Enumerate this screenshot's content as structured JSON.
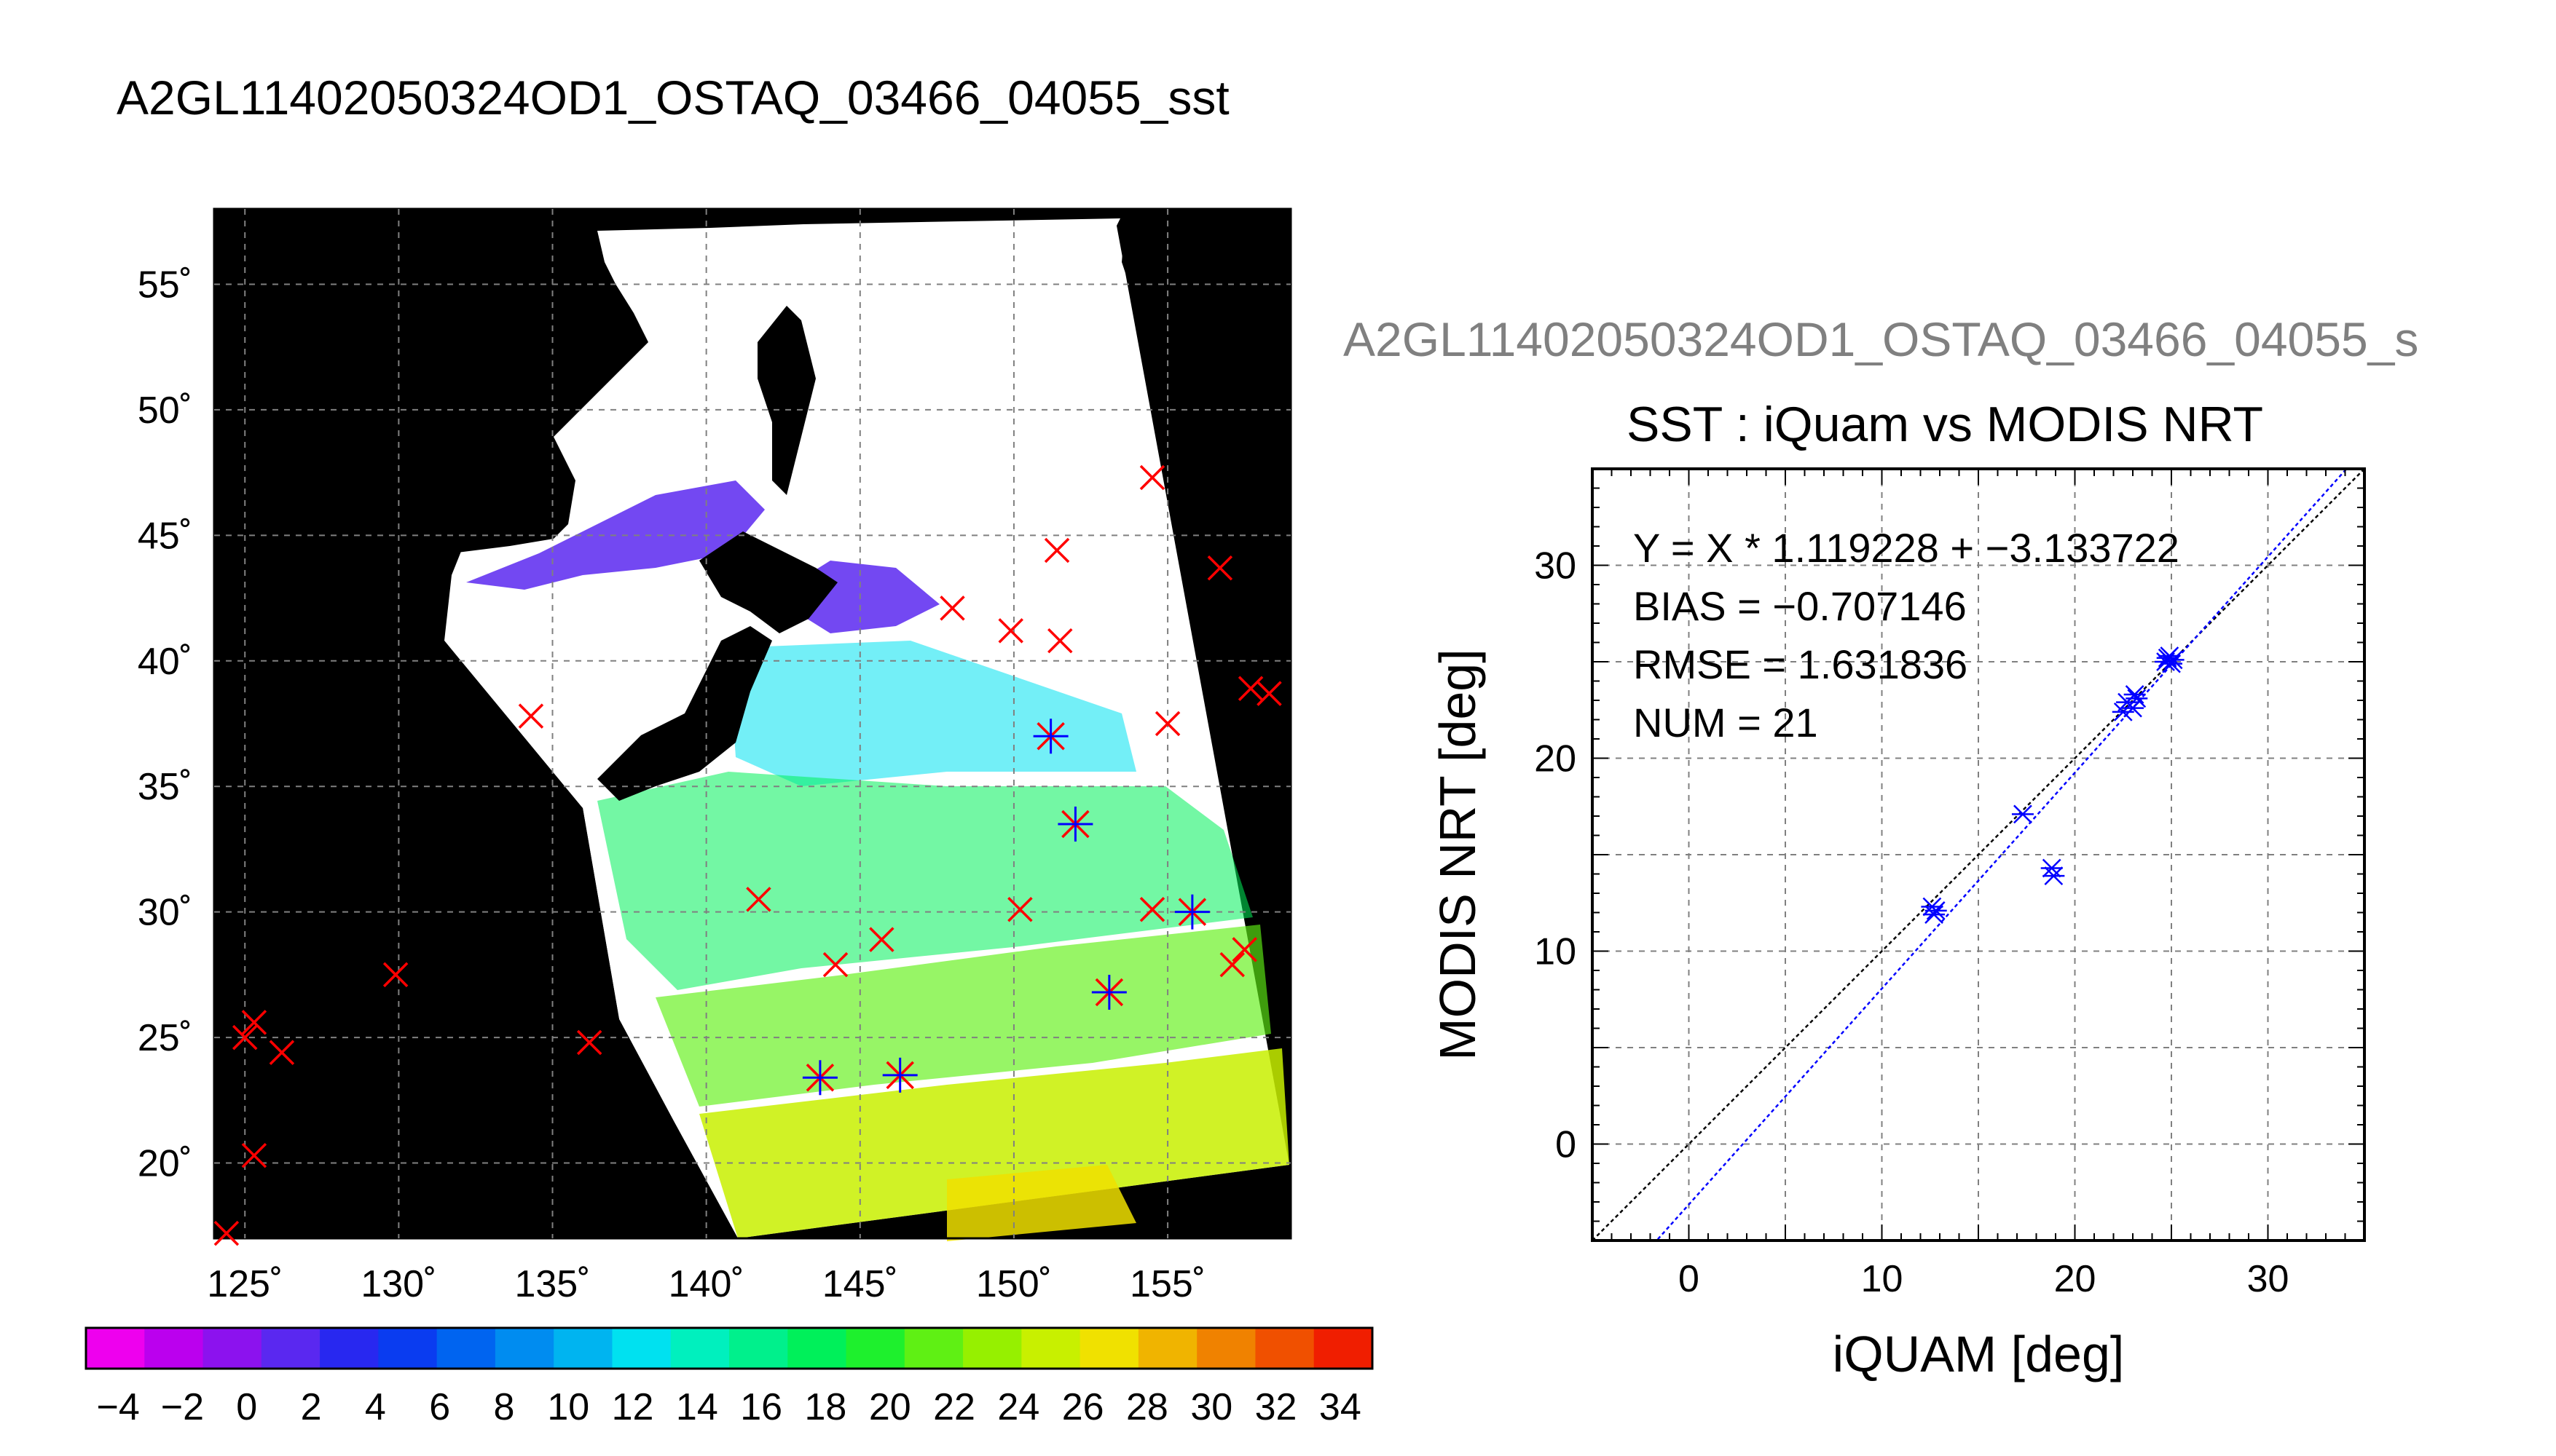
{
  "main_title": "A2GL11402050324OD1_OSTAQ_03466_04055_sst",
  "overlay_title": "A2GL11402050324OD1_OSTAQ_03466_04055_s",
  "colors": {
    "land": "#000000",
    "cloud": "#ffffff",
    "grid": "#808080",
    "marker_red": "#ff0000",
    "marker_blue": "#0000ff",
    "fit_line": "#0000ff",
    "identity_line": "#000000"
  },
  "chart_data": [
    {
      "type": "map",
      "title": "",
      "x_ticks": [
        "125˚",
        "130˚",
        "135˚",
        "140˚",
        "145˚",
        "150˚",
        "155˚"
      ],
      "x_tick_values": [
        125,
        130,
        135,
        140,
        145,
        150,
        155
      ],
      "y_ticks": [
        "55˚",
        "50˚",
        "45˚",
        "40˚",
        "35˚",
        "30˚",
        "25˚",
        "20˚"
      ],
      "y_tick_values": [
        55,
        50,
        45,
        40,
        35,
        30,
        25,
        20
      ],
      "xlim": [
        124,
        159
      ],
      "ylim": [
        17,
        58
      ],
      "grid": true,
      "iquam_points": [
        {
          "lon": 125.0,
          "lat": 25.0
        },
        {
          "lon": 125.3,
          "lat": 25.6
        },
        {
          "lon": 126.2,
          "lat": 24.4
        },
        {
          "lon": 125.3,
          "lat": 20.3
        },
        {
          "lon": 124.4,
          "lat": 17.2
        },
        {
          "lon": 129.9,
          "lat": 27.5
        },
        {
          "lon": 136.2,
          "lat": 24.8
        },
        {
          "lon": 134.3,
          "lat": 37.8
        },
        {
          "lon": 141.7,
          "lat": 30.5
        },
        {
          "lon": 144.2,
          "lat": 27.9
        },
        {
          "lon": 145.7,
          "lat": 28.9
        },
        {
          "lon": 148.0,
          "lat": 42.1
        },
        {
          "lon": 149.9,
          "lat": 41.2
        },
        {
          "lon": 150.2,
          "lat": 30.1
        },
        {
          "lon": 151.4,
          "lat": 44.4
        },
        {
          "lon": 151.5,
          "lat": 40.8
        },
        {
          "lon": 154.5,
          "lat": 47.3
        },
        {
          "lon": 154.5,
          "lat": 30.1
        },
        {
          "lon": 155.0,
          "lat": 37.5
        },
        {
          "lon": 156.7,
          "lat": 43.7
        },
        {
          "lon": 157.1,
          "lat": 27.9
        },
        {
          "lon": 157.5,
          "lat": 28.5
        },
        {
          "lon": 157.7,
          "lat": 38.9
        },
        {
          "lon": 158.3,
          "lat": 38.7
        }
      ],
      "matched_points": [
        {
          "lon": 143.7,
          "lat": 23.4
        },
        {
          "lon": 146.3,
          "lat": 23.5
        },
        {
          "lon": 151.2,
          "lat": 37.0
        },
        {
          "lon": 152.0,
          "lat": 33.5
        },
        {
          "lon": 153.1,
          "lat": 26.8
        },
        {
          "lon": 155.8,
          "lat": 30.0
        }
      ]
    },
    {
      "type": "colorbar",
      "range": [
        -5,
        35
      ],
      "tick_labels": [
        "−4",
        "−2",
        "0",
        "2",
        "4",
        "6",
        "8",
        "10",
        "12",
        "14",
        "16",
        "18",
        "20",
        "22",
        "24",
        "26",
        "28",
        "30",
        "32",
        "34"
      ],
      "tick_values": [
        -4,
        -2,
        0,
        2,
        4,
        6,
        8,
        10,
        12,
        14,
        16,
        18,
        20,
        22,
        24,
        26,
        28,
        30,
        32,
        34
      ],
      "colors": [
        "#ee00ee",
        "#bb00ee",
        "#8c12ee",
        "#5a28f0",
        "#2828f0",
        "#0a3cf0",
        "#0064f0",
        "#008cf0",
        "#00b4f0",
        "#00e1f0",
        "#00f0be",
        "#00f08c",
        "#00f05a",
        "#1ef02d",
        "#5ff014",
        "#96f000",
        "#c8f000",
        "#f0e100",
        "#f0b400",
        "#f08200",
        "#f05000",
        "#f01e00"
      ]
    },
    {
      "type": "scatter",
      "title": "SST : iQuam vs MODIS NRT",
      "xlabel": "iQUAM [deg]",
      "ylabel": "MODIS NRT [deg]",
      "xlim": [
        -5,
        35
      ],
      "ylim": [
        -5,
        35
      ],
      "x_ticks": [
        "0",
        "10",
        "20",
        "30"
      ],
      "x_tick_values": [
        0,
        10,
        20,
        30
      ],
      "y_ticks": [
        "0",
        "10",
        "20",
        "30"
      ],
      "y_tick_values": [
        0,
        10,
        20,
        30
      ],
      "grid": true,
      "annotations": [
        "Y = X * 1.119228 + −3.133722",
        "BIAS = −0.707146",
        "RMSE = 1.631836",
        "NUM = 21"
      ],
      "fit": {
        "slope": 1.119228,
        "intercept": -3.133722
      },
      "points": [
        {
          "x": 12.6,
          "y": 12.3
        },
        {
          "x": 12.7,
          "y": 11.9
        },
        {
          "x": 12.8,
          "y": 12.1
        },
        {
          "x": 17.3,
          "y": 17.1
        },
        {
          "x": 18.8,
          "y": 14.3
        },
        {
          "x": 18.9,
          "y": 13.9
        },
        {
          "x": 22.5,
          "y": 22.4
        },
        {
          "x": 22.7,
          "y": 22.9
        },
        {
          "x": 23.1,
          "y": 23.3
        },
        {
          "x": 23.2,
          "y": 23.1
        },
        {
          "x": 23.0,
          "y": 22.6
        },
        {
          "x": 24.7,
          "y": 25.0
        },
        {
          "x": 24.9,
          "y": 25.3
        },
        {
          "x": 25.0,
          "y": 24.9
        },
        {
          "x": 24.8,
          "y": 25.2
        },
        {
          "x": 25.1,
          "y": 25.1
        }
      ]
    }
  ]
}
